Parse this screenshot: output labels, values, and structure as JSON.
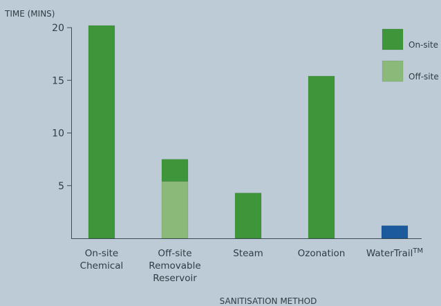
{
  "chart_data": {
    "type": "bar",
    "stacked": true,
    "ylabel": "TIME (MINS)",
    "xlabel": "SANITISATION METHOD",
    "ylim": [
      0,
      20
    ],
    "yticks": [
      5,
      10,
      15,
      20
    ],
    "grid": false,
    "legend_position": "top-right",
    "categories": [
      {
        "lines": [
          "On-site",
          "Chemical"
        ]
      },
      {
        "lines": [
          "Off-site",
          "Removable",
          "Reservoir"
        ]
      },
      {
        "lines": [
          "Steam"
        ]
      },
      {
        "lines": [
          "Ozonation"
        ]
      },
      {
        "lines": [
          "WaterTrail"
        ],
        "superscript": "TM"
      }
    ],
    "series": [
      {
        "name": "Off-site",
        "color": "#8ab97a",
        "values": [
          0,
          5.4,
          0,
          0,
          0
        ]
      },
      {
        "name": "On-site",
        "color": "#3f963a",
        "values": [
          20.2,
          2.1,
          4.3,
          15.4,
          0
        ]
      },
      {
        "name": "",
        "color": "#1b5a9c",
        "values": [
          0,
          0,
          0,
          0,
          1.2
        ]
      }
    ],
    "legend": [
      {
        "label": "On-site",
        "color": "#3f963a"
      },
      {
        "label": "Off-site",
        "color": "#8ab97a"
      }
    ]
  }
}
